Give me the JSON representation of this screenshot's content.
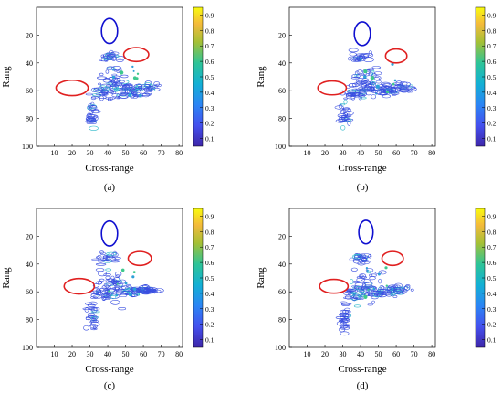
{
  "chart_data": [
    {
      "type": "heatmap",
      "panel_label": "(a)",
      "xlabel": "Cross-range",
      "ylabel": "Rang",
      "xlim": [
        0,
        82
      ],
      "ylim": [
        100,
        0
      ],
      "x_ticks": [
        10,
        20,
        30,
        40,
        50,
        60,
        70,
        80
      ],
      "y_ticks": [
        20,
        40,
        60,
        80,
        100
      ],
      "colorbar": {
        "min": 0.05,
        "max": 0.95,
        "ticks": [
          0.1,
          0.2,
          0.3,
          0.4,
          0.5,
          0.6,
          0.7,
          0.8,
          0.9
        ]
      },
      "ellipses": [
        {
          "color": "#1010d0",
          "cx": 41,
          "cy": 17,
          "rx": 4.5,
          "ry": 9
        },
        {
          "color": "#e02020",
          "cx": 56,
          "cy": 34,
          "rx": 7,
          "ry": 5
        },
        {
          "color": "#e02020",
          "cx": 20,
          "cy": 58,
          "rx": 9,
          "ry": 5.5
        }
      ]
    },
    {
      "type": "heatmap",
      "panel_label": "(b)",
      "xlabel": "Cross-range",
      "ylabel": "Rang",
      "xlim": [
        0,
        82
      ],
      "ylim": [
        100,
        0
      ],
      "x_ticks": [
        10,
        20,
        30,
        40,
        50,
        60,
        70,
        80
      ],
      "y_ticks": [
        20,
        40,
        60,
        80,
        100
      ],
      "colorbar": {
        "min": 0.05,
        "max": 0.95,
        "ticks": [
          0.1,
          0.2,
          0.3,
          0.4,
          0.5,
          0.6,
          0.7,
          0.8,
          0.9
        ]
      },
      "ellipses": [
        {
          "color": "#1010d0",
          "cx": 41,
          "cy": 19,
          "rx": 4.5,
          "ry": 8.5
        },
        {
          "color": "#e02020",
          "cx": 60,
          "cy": 35,
          "rx": 6,
          "ry": 5
        },
        {
          "color": "#e02020",
          "cx": 24,
          "cy": 58,
          "rx": 8,
          "ry": 5
        }
      ]
    },
    {
      "type": "heatmap",
      "panel_label": "(c)",
      "xlabel": "Cross-range",
      "ylabel": "Rang",
      "xlim": [
        0,
        82
      ],
      "ylim": [
        100,
        0
      ],
      "x_ticks": [
        10,
        20,
        30,
        40,
        50,
        60,
        70,
        80
      ],
      "y_ticks": [
        20,
        40,
        60,
        80,
        100
      ],
      "colorbar": {
        "min": 0.05,
        "max": 0.95,
        "ticks": [
          0.1,
          0.2,
          0.3,
          0.4,
          0.5,
          0.6,
          0.7,
          0.8,
          0.9
        ]
      },
      "ellipses": [
        {
          "color": "#1010d0",
          "cx": 41,
          "cy": 18,
          "rx": 4.5,
          "ry": 9
        },
        {
          "color": "#e02020",
          "cx": 58,
          "cy": 36,
          "rx": 6.5,
          "ry": 5
        },
        {
          "color": "#e02020",
          "cx": 24,
          "cy": 56,
          "rx": 8.5,
          "ry": 5.5
        }
      ]
    },
    {
      "type": "heatmap",
      "panel_label": "(d)",
      "xlabel": "Cross-range",
      "ylabel": "Rang",
      "xlim": [
        0,
        82
      ],
      "ylim": [
        100,
        0
      ],
      "x_ticks": [
        10,
        20,
        30,
        40,
        50,
        60,
        70,
        80
      ],
      "y_ticks": [
        20,
        40,
        60,
        80,
        100
      ],
      "colorbar": {
        "min": 0.05,
        "max": 0.95,
        "ticks": [
          0.1,
          0.2,
          0.3,
          0.4,
          0.5,
          0.6,
          0.7,
          0.8,
          0.9
        ]
      },
      "ellipses": [
        {
          "color": "#1010d0",
          "cx": 43,
          "cy": 17,
          "rx": 4,
          "ry": 8.5
        },
        {
          "color": "#e02020",
          "cx": 58,
          "cy": 36,
          "rx": 6,
          "ry": 5
        },
        {
          "color": "#e02020",
          "cx": 25,
          "cy": 56,
          "rx": 8,
          "ry": 5
        }
      ]
    }
  ]
}
